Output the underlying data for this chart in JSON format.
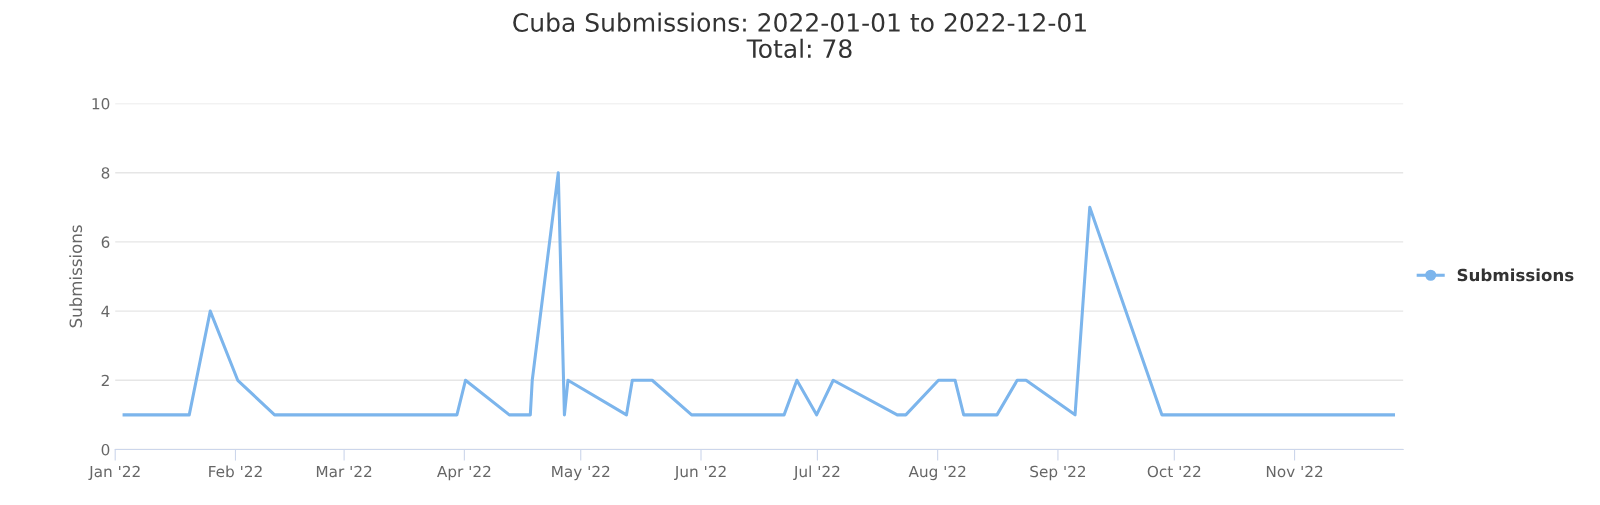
{
  "chart_data": {
    "type": "line",
    "title": "Cuba Submissions: 2022-01-01 to 2022-12-01",
    "subtitle": "Total: 78",
    "ylabel": "Submissions",
    "x": [
      "2022-01-03T07:00",
      "2022-01-20T02:00",
      "2022-01-25T12:00",
      "2022-02-01T14:00",
      "2022-02-11T02:00",
      "2022-03-30T02:00",
      "2022-04-01T07:00",
      "2022-04-12T14:00",
      "2022-04-18T00:00",
      "2022-04-18T12:00",
      "2022-04-25T05:00",
      "2022-04-26T19:00",
      "2022-04-27T17:00",
      "2022-05-12T19:00",
      "2022-05-14T07:00",
      "2022-05-19T10:00",
      "2022-05-29T14:00",
      "2022-06-22T10:00",
      "2022-06-25T17:00",
      "2022-06-30T19:00",
      "2022-07-05T02:00",
      "2022-07-21T14:00",
      "2022-07-23T19:00",
      "2022-08-01T05:00",
      "2022-08-05T12:00",
      "2022-08-07T17:00",
      "2022-08-16T07:00",
      "2022-08-21T12:00",
      "2022-08-23T19:00",
      "2022-09-05T10:00",
      "2022-09-09T05:00",
      "2022-09-27T19:00",
      "2022-11-26T12:00"
    ],
    "series": [
      {
        "name": "Submissions",
        "color": "#7cb5ec",
        "values": [
          1,
          1,
          4,
          2,
          1,
          1,
          2,
          1,
          1,
          2,
          8,
          1,
          2,
          1,
          2,
          2,
          1,
          1,
          2,
          1,
          2,
          1,
          1,
          2,
          2,
          1,
          1,
          2,
          2,
          1,
          7,
          1,
          1
        ]
      }
    ],
    "xlim": [
      "2022-01-01",
      "2022-11-29"
    ],
    "xticks": [
      {
        "value": "2022-01-01",
        "label": "Jan '22"
      },
      {
        "value": "2022-02-01",
        "label": "Feb '22"
      },
      {
        "value": "2022-03-01",
        "label": "Mar '22"
      },
      {
        "value": "2022-04-01",
        "label": "Apr '22"
      },
      {
        "value": "2022-05-01",
        "label": "May '22"
      },
      {
        "value": "2022-06-01",
        "label": "Jun '22"
      },
      {
        "value": "2022-07-01",
        "label": "Jul '22"
      },
      {
        "value": "2022-08-01",
        "label": "Aug '22"
      },
      {
        "value": "2022-09-01",
        "label": "Sep '22"
      },
      {
        "value": "2022-10-01",
        "label": "Oct '22"
      },
      {
        "value": "2022-11-01",
        "label": "Nov '22"
      }
    ],
    "ylim": [
      0,
      10
    ],
    "yticks": [
      0,
      2,
      4,
      6,
      8,
      10
    ],
    "grid": "y",
    "legend": "right",
    "line_style": "solid"
  }
}
